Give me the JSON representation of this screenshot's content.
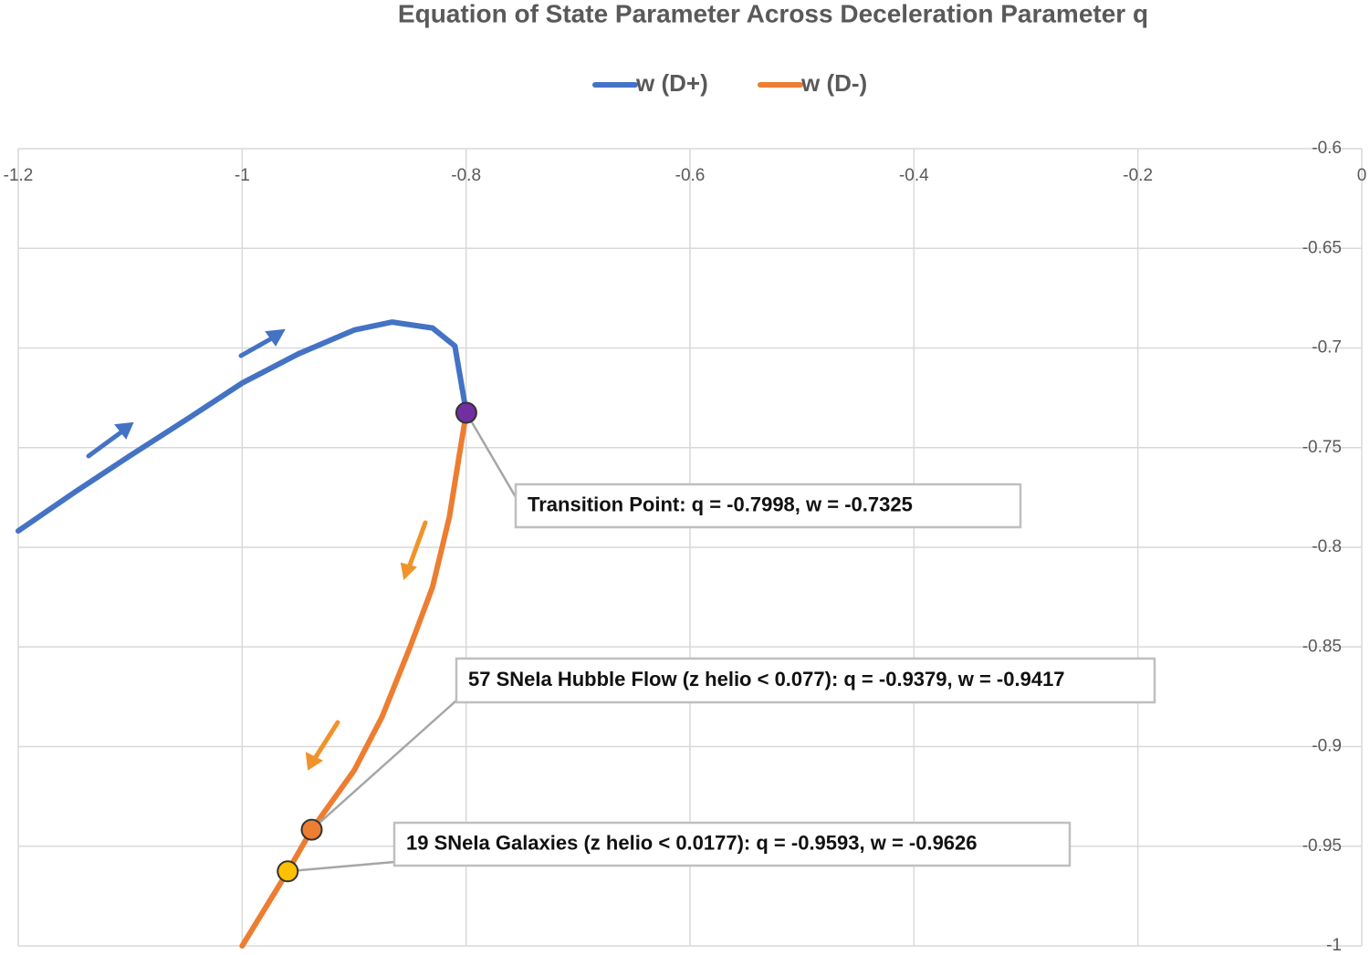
{
  "chart_data": {
    "type": "line",
    "title": "Equation of State Parameter Across Deceleration Parameter q",
    "series": [
      {
        "name": "w (D+)",
        "color": "#4472c4",
        "x": [
          -1.2,
          -1.15,
          -1.1,
          -1.05,
          -1.0,
          -0.95,
          -0.9,
          -0.866,
          -0.83,
          -0.81,
          -0.7998
        ],
        "values": [
          -0.7918,
          -0.7725,
          -0.754,
          -0.736,
          -0.7176,
          -0.703,
          -0.691,
          -0.687,
          -0.69,
          -0.699,
          -0.7325
        ]
      },
      {
        "name": "w (D-)",
        "color": "#ed7d31",
        "x": [
          -0.7998,
          -0.805,
          -0.815,
          -0.83,
          -0.85,
          -0.875,
          -0.9,
          -0.9379,
          -0.9593,
          -1.0
        ],
        "values": [
          -0.7325,
          -0.75,
          -0.785,
          -0.82,
          -0.85,
          -0.885,
          -0.912,
          -0.9417,
          -0.9626,
          -1.0
        ]
      }
    ],
    "annotations": [
      {
        "text": "Transition Point: q = -0.7998, w = -0.7325",
        "x": -0.7998,
        "y": -0.7325,
        "color": "#7030a0"
      },
      {
        "text": "57 SNeIa Hubble Flow  (z helio < 0.077): q = -0.9379, w = -0.9417",
        "x": -0.9379,
        "y": -0.9417,
        "color": "#ed7d31"
      },
      {
        "text": "19 SNeIa Galaxies (z helio < 0.0177): q = -0.9593, w = -0.9626",
        "x": -0.9593,
        "y": -0.9626,
        "color": "#ffc000"
      }
    ],
    "xlim": [
      -1.2,
      0
    ],
    "xticks": [
      -1.2,
      -1,
      -0.8,
      -0.6,
      -0.4,
      -0.2,
      0
    ],
    "ylim": [
      -1,
      -0.6
    ],
    "yticks": [
      -0.6,
      -0.65,
      -0.7,
      -0.75,
      -0.8,
      -0.85,
      -0.9,
      -0.95,
      -1
    ],
    "grid": true,
    "legend": "top"
  }
}
